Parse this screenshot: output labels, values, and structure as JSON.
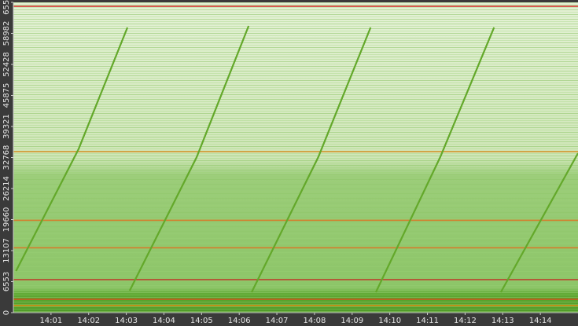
{
  "chart_data": {
    "type": "line",
    "xlim": [
      0,
      15.0
    ],
    "xticks": [
      {
        "value": 1,
        "label": "14:01"
      },
      {
        "value": 2,
        "label": "14:02"
      },
      {
        "value": 3,
        "label": "14:03"
      },
      {
        "value": 4,
        "label": "14:04"
      },
      {
        "value": 5,
        "label": "14:05"
      },
      {
        "value": 6,
        "label": "14:06"
      },
      {
        "value": 7,
        "label": "14:07"
      },
      {
        "value": 8,
        "label": "14:08"
      },
      {
        "value": 9,
        "label": "14:09"
      },
      {
        "value": 10,
        "label": "14:10"
      },
      {
        "value": 11,
        "label": "14:11"
      },
      {
        "value": 12,
        "label": "14:12"
      },
      {
        "value": 13,
        "label": "14:13"
      },
      {
        "value": 14,
        "label": "14:14"
      }
    ],
    "ylim": [
      0,
      65536
    ],
    "yticks": [
      0,
      6553,
      13107,
      19660,
      26214,
      32768,
      39321,
      45875,
      52428,
      58982,
      65536
    ],
    "series": [
      {
        "color": "#63a82a",
        "x": [
          0.07,
          1.73,
          3.03
        ],
        "values": [
          8793,
          34500,
          60230
        ]
      },
      {
        "color": "#63a82a",
        "x": [
          3.09,
          4.87,
          6.25
        ],
        "values": [
          4645,
          32850,
          60560
        ]
      },
      {
        "color": "#63a82a",
        "x": [
          6.33,
          8.1,
          9.49
        ],
        "values": [
          4310,
          32850,
          60230
        ]
      },
      {
        "color": "#63a82a",
        "x": [
          9.63,
          11.34,
          12.77
        ],
        "values": [
          4310,
          32850,
          60230
        ]
      },
      {
        "color": "#63a82a",
        "x": [
          12.95,
          15.0
        ],
        "values": [
          4310,
          33680
        ]
      }
    ],
    "hot_ports": [
      {
        "port": 64700,
        "color": "#d42020"
      },
      {
        "port": 6970,
        "color": "#c81e1e"
      },
      {
        "port": 2820,
        "color": "#e03a10"
      },
      {
        "port": 1500,
        "color": "#e88a10"
      },
      {
        "port": 19500,
        "color": "#e07020"
      },
      {
        "port": 13700,
        "color": "#e07020"
      },
      {
        "port": 34000,
        "color": "#e08a20"
      }
    ]
  }
}
